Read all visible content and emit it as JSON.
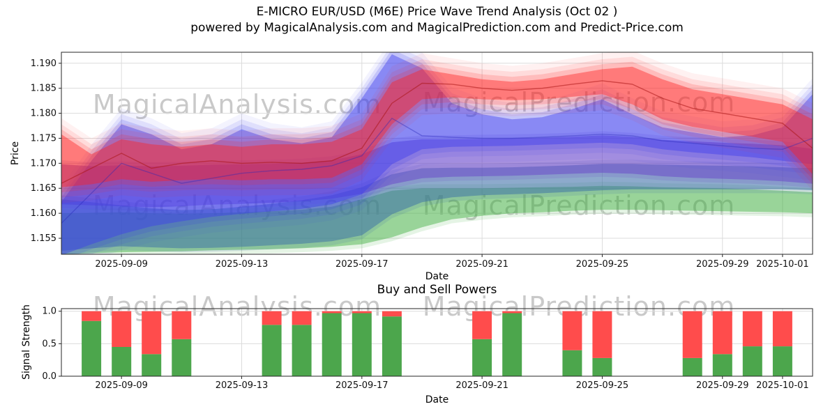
{
  "title": {
    "line1": "E-MICRO EUR/USD (M6E) Price Wave Trend Analysis (Oct 02 )",
    "line2": "powered by MagicalAnalysis.com and MagicalPrediction.com and Predict-Price.com"
  },
  "watermarks": {
    "analysis": "MagicalAnalysis.com",
    "prediction": "MagicalPrediction.com"
  },
  "chart_data": [
    {
      "type": "area",
      "name": "price-wave-trend",
      "title": "",
      "xlabel": "Date",
      "ylabel": "Price",
      "grid": true,
      "x_start": "2025-09-07",
      "x_end": "2025-10-02",
      "x_ticks": [
        "2025-09-09",
        "2025-09-13",
        "2025-09-17",
        "2025-09-21",
        "2025-09-25",
        "2025-09-29",
        "2025-10-01"
      ],
      "ylim": [
        1.1518,
        1.1922
      ],
      "y_ticks": [
        1.155,
        1.16,
        1.165,
        1.17,
        1.175,
        1.18,
        1.185,
        1.19
      ],
      "dates": [
        "2025-09-07",
        "2025-09-08",
        "2025-09-09",
        "2025-09-10",
        "2025-09-11",
        "2025-09-12",
        "2025-09-13",
        "2025-09-14",
        "2025-09-15",
        "2025-09-16",
        "2025-09-17",
        "2025-09-18",
        "2025-09-19",
        "2025-09-20",
        "2025-09-21",
        "2025-09-22",
        "2025-09-23",
        "2025-09-24",
        "2025-09-25",
        "2025-09-26",
        "2025-09-27",
        "2025-09-28",
        "2025-09-29",
        "2025-09-30",
        "2025-10-01",
        "2025-10-02"
      ],
      "bands": [
        {
          "name": "green-band",
          "color": "#3faf3f",
          "opacity": 0.45,
          "fuzzy": false,
          "lower": [
            1.1518,
            1.152,
            1.1522,
            1.1523,
            1.1524,
            1.1526,
            1.1527,
            1.1528,
            1.153,
            1.1533,
            1.1538,
            1.1552,
            1.1572,
            1.1588,
            1.1595,
            1.16,
            1.1602,
            1.1605,
            1.1607,
            1.1607,
            1.1606,
            1.1605,
            1.1604,
            1.1603,
            1.1602,
            1.16
          ],
          "upper": [
            1.16,
            1.1601,
            1.1602,
            1.16,
            1.1599,
            1.16,
            1.1602,
            1.1604,
            1.1607,
            1.1613,
            1.1628,
            1.1645,
            1.165,
            1.165,
            1.165,
            1.1651,
            1.1652,
            1.1653,
            1.1655,
            1.1654,
            1.1652,
            1.1651,
            1.165,
            1.1648,
            1.1645,
            1.1642
          ]
        },
        {
          "name": "teal-band",
          "color": "#3a6ea8",
          "opacity": 0.5,
          "fuzzy": false,
          "lower": [
            1.1525,
            1.153,
            1.1534,
            1.1532,
            1.153,
            1.1531,
            1.1533,
            1.1536,
            1.1539,
            1.1544,
            1.1556,
            1.1598,
            1.1622,
            1.1632,
            1.1636,
            1.1638,
            1.164,
            1.1643,
            1.1646,
            1.1648,
            1.1648,
            1.1648,
            1.1648,
            1.1648,
            1.1648,
            1.1646
          ],
          "upper": [
            1.1628,
            1.1622,
            1.1616,
            1.161,
            1.1606,
            1.1608,
            1.1613,
            1.1619,
            1.1626,
            1.1636,
            1.1652,
            1.1678,
            1.169,
            1.1691,
            1.1691,
            1.1692,
            1.1694,
            1.1696,
            1.1699,
            1.1699,
            1.1697,
            1.1696,
            1.1695,
            1.1694,
            1.1692,
            1.169
          ]
        },
        {
          "name": "purple-band",
          "color": "#6a43c8",
          "opacity": 0.5,
          "fuzzy": false,
          "lower": [
            1.1618,
            1.1616,
            1.1614,
            1.1612,
            1.1614,
            1.1617,
            1.1619,
            1.1621,
            1.1624,
            1.1629,
            1.1639,
            1.1658,
            1.167,
            1.1673,
            1.1674,
            1.1675,
            1.1677,
            1.1679,
            1.1681,
            1.1679,
            1.1674,
            1.1671,
            1.1669,
            1.1667,
            1.1664,
            1.1659
          ],
          "upper": [
            1.1698,
            1.1694,
            1.1696,
            1.1694,
            1.1695,
            1.1697,
            1.1698,
            1.1699,
            1.1701,
            1.1706,
            1.1718,
            1.1742,
            1.1748,
            1.1748,
            1.1749,
            1.175,
            1.1751,
            1.1753,
            1.1756,
            1.1753,
            1.1747,
            1.1744,
            1.1741,
            1.1739,
            1.1736,
            1.1729
          ]
        },
        {
          "name": "blue-band",
          "color": "#3c3cf0",
          "opacity": 0.42,
          "fuzzy": true,
          "lower": [
            1.1516,
            1.1538,
            1.1558,
            1.1574,
            1.1584,
            1.1593,
            1.1599,
            1.1604,
            1.1609,
            1.1618,
            1.1638,
            1.1698,
            1.1728,
            1.1733,
            1.1734,
            1.1735,
            1.1737,
            1.1739,
            1.1741,
            1.1738,
            1.1728,
            1.1722,
            1.1717,
            1.1712,
            1.1705,
            1.1698
          ],
          "upper": [
            1.1622,
            1.1705,
            1.1778,
            1.1758,
            1.1728,
            1.1738,
            1.1768,
            1.1748,
            1.174,
            1.1752,
            1.183,
            1.1918,
            1.189,
            1.182,
            1.1798,
            1.1788,
            1.1792,
            1.1808,
            1.1828,
            1.1798,
            1.1772,
            1.1762,
            1.1752,
            1.1756,
            1.1772,
            1.1838
          ]
        },
        {
          "name": "red-band",
          "color": "#ff2222",
          "opacity": 0.42,
          "fuzzy": true,
          "lower": [
            1.1652,
            1.1658,
            1.1668,
            1.1663,
            1.1666,
            1.1668,
            1.1666,
            1.1668,
            1.1668,
            1.1671,
            1.1698,
            1.1778,
            1.1828,
            1.1832,
            1.1828,
            1.1826,
            1.1828,
            1.1833,
            1.1838,
            1.1818,
            1.1788,
            1.1773,
            1.1763,
            1.1753,
            1.1743,
            1.1678
          ],
          "upper": [
            1.1758,
            1.1718,
            1.1748,
            1.1738,
            1.1733,
            1.1738,
            1.1733,
            1.1738,
            1.1738,
            1.1743,
            1.1768,
            1.1862,
            1.1888,
            1.1878,
            1.1868,
            1.1863,
            1.1868,
            1.1878,
            1.1888,
            1.1893,
            1.1868,
            1.1848,
            1.1838,
            1.1828,
            1.1818,
            1.1788
          ]
        }
      ],
      "lines": [
        {
          "name": "red-trend-line",
          "color": "#aa1515",
          "opacity": 0.55,
          "values": [
            1.166,
            1.169,
            1.172,
            1.169,
            1.17,
            1.1705,
            1.17,
            1.1702,
            1.17,
            1.1705,
            1.173,
            1.182,
            1.186,
            1.1858,
            1.185,
            1.1846,
            1.185,
            1.1858,
            1.1865,
            1.1858,
            1.183,
            1.181,
            1.18,
            1.179,
            1.178,
            1.173
          ]
        },
        {
          "name": "blue-trend-line",
          "color": "#2828b8",
          "opacity": 0.4,
          "values": [
            1.158,
            1.164,
            1.17,
            1.168,
            1.166,
            1.167,
            1.168,
            1.1685,
            1.1688,
            1.1695,
            1.1715,
            1.179,
            1.1755,
            1.1752,
            1.175,
            1.175,
            1.1752,
            1.1755,
            1.1758,
            1.1755,
            1.1745,
            1.174,
            1.1735,
            1.173,
            1.1728,
            1.175
          ]
        }
      ]
    },
    {
      "type": "bar",
      "name": "buy-sell-powers",
      "title": "Buy and Sell Powers",
      "xlabel": "Date",
      "ylabel": "Signal Strength",
      "grid": true,
      "x_ticks": [
        "2025-09-09",
        "2025-09-13",
        "2025-09-17",
        "2025-09-21",
        "2025-09-25",
        "2025-09-29",
        "2025-10-01"
      ],
      "ylim": [
        0,
        1.04
      ],
      "y_ticks": [
        0.0,
        0.5,
        1.0
      ],
      "bar_total": 1.0,
      "bar_width_days": 0.65,
      "buy_color": "#4ca64c",
      "sell_color": "#ff4c4c",
      "bars": {
        "dates": [
          "2025-09-08",
          "2025-09-09",
          "2025-09-10",
          "2025-09-11",
          "2025-09-14",
          "2025-09-15",
          "2025-09-16",
          "2025-09-17",
          "2025-09-18",
          "2025-09-21",
          "2025-09-22",
          "2025-09-24",
          "2025-09-25",
          "2025-09-28",
          "2025-09-29",
          "2025-09-30",
          "2025-10-01"
        ],
        "buy": [
          0.85,
          0.45,
          0.34,
          0.57,
          0.79,
          0.79,
          0.97,
          0.97,
          0.92,
          0.57,
          0.97,
          0.4,
          0.28,
          0.28,
          0.34,
          0.46,
          0.46
        ]
      }
    }
  ]
}
